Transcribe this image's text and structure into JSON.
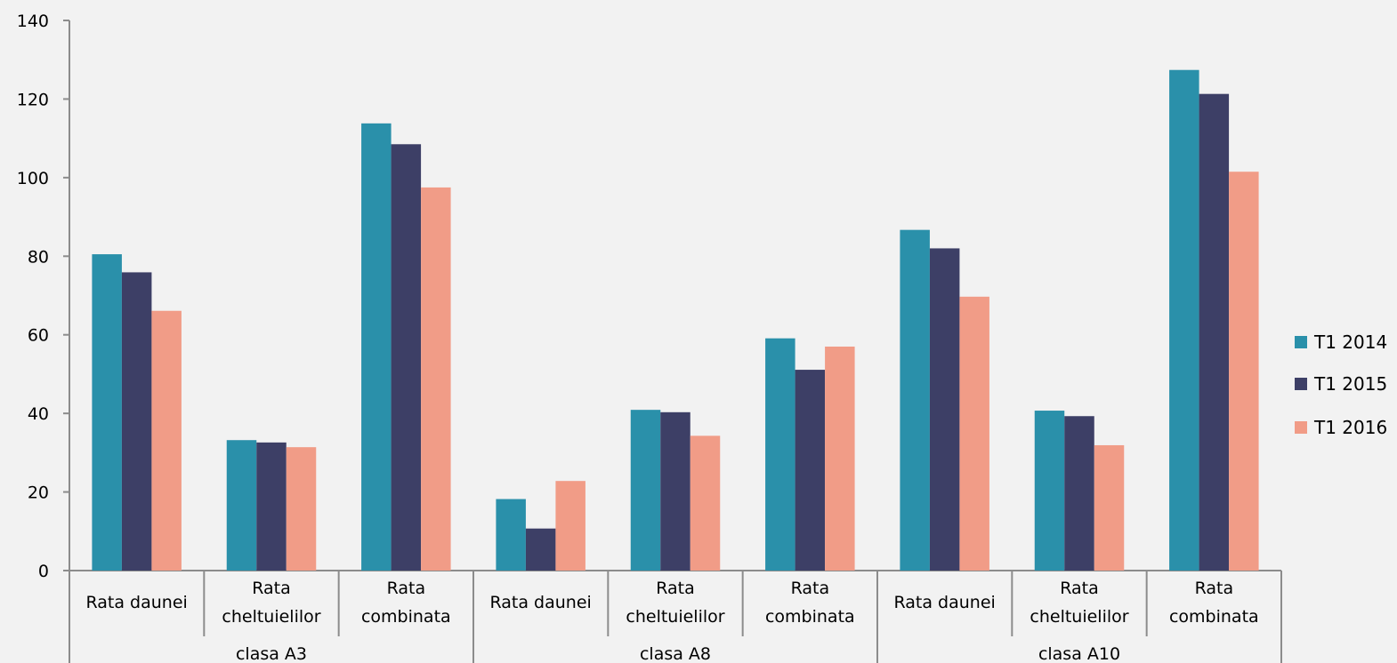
{
  "chart_data": {
    "type": "bar",
    "groups": [
      {
        "label": "clasa A3",
        "categories": [
          "Rata daunei",
          "Rata cheltuielilor",
          "Rata combinata"
        ]
      },
      {
        "label": "clasa A8",
        "categories": [
          "Rata daunei",
          "Rata cheltuielilor",
          "Rata combinata"
        ]
      },
      {
        "label": "clasa A10",
        "categories": [
          "Rata daunei",
          "Rata cheltuielilor",
          "Rata combinata"
        ]
      }
    ],
    "series": [
      {
        "name": "T1 2014",
        "color": "#2a90aa",
        "values": [
          80.5,
          33.2,
          113.8,
          18.2,
          40.9,
          59.1,
          86.7,
          40.7,
          127.4
        ]
      },
      {
        "name": "T1 2015",
        "color": "#3d3f66",
        "values": [
          75.9,
          32.6,
          108.5,
          10.7,
          40.3,
          51.1,
          82.0,
          39.3,
          121.3
        ]
      },
      {
        "name": "T1 2016",
        "color": "#f19c87",
        "values": [
          66.1,
          31.4,
          97.5,
          22.8,
          34.3,
          57.0,
          69.7,
          31.9,
          101.5
        ]
      }
    ],
    "yticks": [
      "0",
      "20",
      "40",
      "60",
      "80",
      "100",
      "120",
      "140"
    ],
    "ylim": [
      0,
      140
    ],
    "legend_position": "right",
    "grid": false
  }
}
